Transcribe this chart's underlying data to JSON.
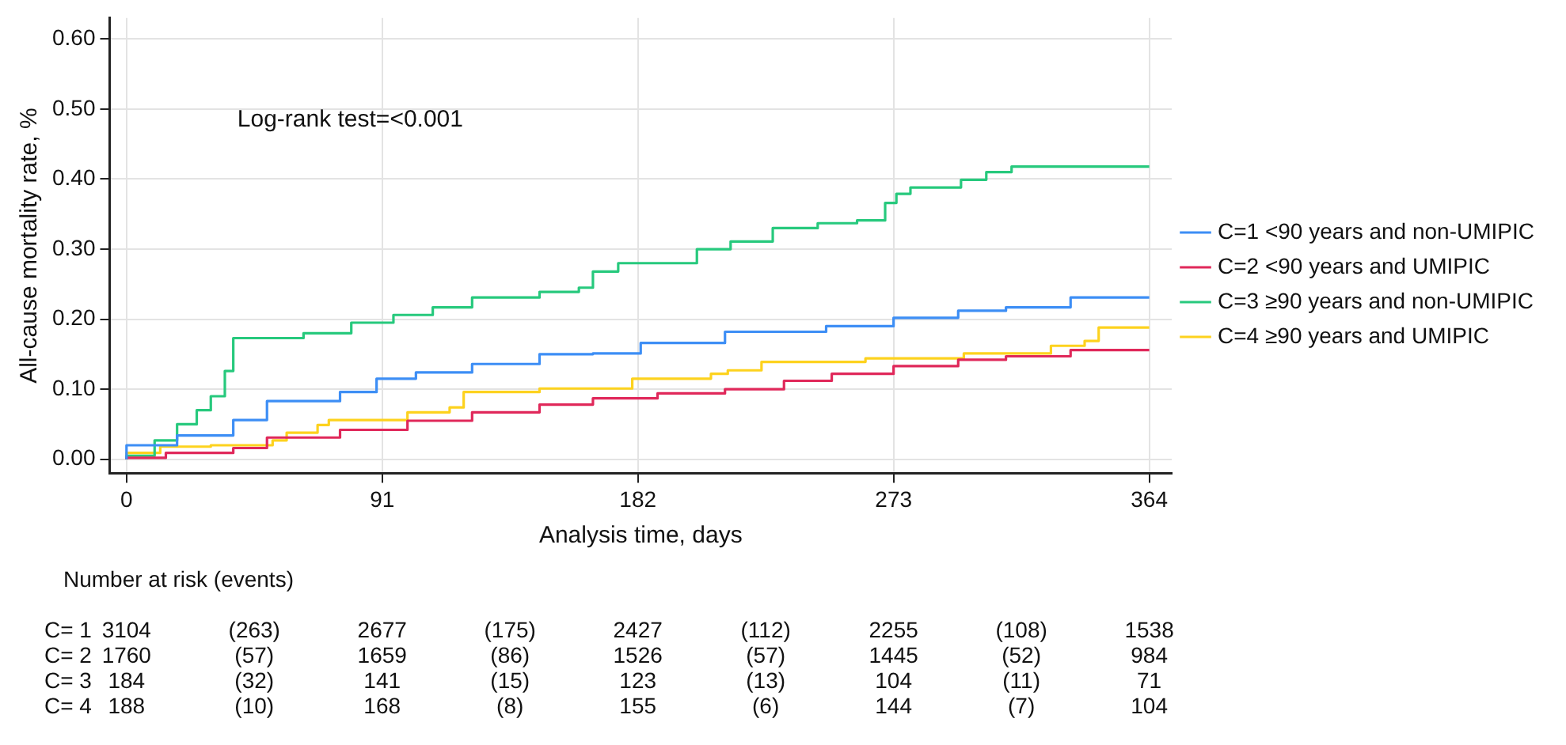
{
  "chart_data": {
    "type": "step",
    "xlabel": "Analysis time, days",
    "ylabel": "All-cause mortality rate, %",
    "xlim": [
      -6,
      372
    ],
    "xticks": [
      0,
      91,
      182,
      273,
      364
    ],
    "ylim": [
      -0.02,
      0.63
    ],
    "yticks": [
      {
        "value": 0,
        "label": "0.00"
      },
      {
        "value": 0.1,
        "label": "0.10"
      },
      {
        "value": 0.2,
        "label": "0.20"
      },
      {
        "value": 0.3,
        "label": "0.30"
      },
      {
        "value": 0.4,
        "label": "0.40"
      },
      {
        "value": 0.5,
        "label": "0.50"
      },
      {
        "value": 0.6,
        "label": "0.60"
      }
    ],
    "grid": true,
    "legend": "right",
    "line_style": "solid",
    "marker": "none",
    "series": [
      {
        "name": "C=1 <90 years and non-UMIPIC",
        "color": "#3d8ef5",
        "x": [
          0,
          18,
          38,
          50,
          76,
          89,
          103,
          123,
          147,
          166,
          183,
          213,
          249,
          273,
          296,
          313,
          336,
          364
        ],
        "values": [
          0,
          0.02,
          0.034,
          0.056,
          0.083,
          0.096,
          0.115,
          0.124,
          0.136,
          0.15,
          0.151,
          0.166,
          0.182,
          0.19,
          0.202,
          0.212,
          0.217,
          0.231
        ]
      },
      {
        "name": "C=2 <90 years and UMIPIC",
        "color": "#e0285a",
        "x": [
          0,
          14,
          38,
          50,
          76,
          100,
          123,
          147,
          166,
          189,
          213,
          234,
          251,
          273,
          296,
          313,
          336,
          364
        ],
        "values": [
          0,
          0.002,
          0.009,
          0.016,
          0.031,
          0.042,
          0.055,
          0.067,
          0.078,
          0.087,
          0.094,
          0.1,
          0.112,
          0.122,
          0.133,
          0.142,
          0.147,
          0.156
        ]
      },
      {
        "name": "C=3 ≥90 years and non-UMIPIC",
        "color": "#27c97d",
        "x": [
          0,
          10,
          18,
          25,
          30,
          35,
          38,
          63,
          68,
          80,
          95,
          109,
          123,
          147,
          161,
          166,
          175,
          183,
          203,
          215,
          230,
          246,
          260,
          270,
          274,
          279,
          297,
          306,
          315,
          336,
          364
        ],
        "values": [
          0,
          0.005,
          0.027,
          0.05,
          0.07,
          0.09,
          0.126,
          0.173,
          0.18,
          0.18,
          0.195,
          0.206,
          0.217,
          0.231,
          0.239,
          0.245,
          0.268,
          0.28,
          0.28,
          0.3,
          0.311,
          0.33,
          0.337,
          0.341,
          0.366,
          0.379,
          0.388,
          0.399,
          0.41,
          0.418,
          0.418
        ]
      },
      {
        "name": "C=4 ≥90 years and UMIPIC",
        "color": "#fdd21e",
        "x": [
          0,
          12,
          30,
          52,
          57,
          68,
          72,
          86,
          100,
          115,
          120,
          147,
          180,
          208,
          214,
          226,
          263,
          298,
          329,
          341,
          346,
          358,
          364
        ],
        "values": [
          0,
          0.009,
          0.018,
          0.02,
          0.027,
          0.038,
          0.049,
          0.056,
          0.056,
          0.067,
          0.074,
          0.096,
          0.101,
          0.115,
          0.122,
          0.127,
          0.139,
          0.144,
          0.151,
          0.162,
          0.169,
          0.188,
          0.188
        ]
      }
    ],
    "annotations": [
      "Log-rank test=<0.001",
      "Number at risk (events)",
      "C= 1",
      "3104",
      "(263)",
      "2677",
      "(175)",
      "2427",
      "(112)",
      "2255",
      "(108)",
      "1538",
      "C= 2",
      "1760",
      "(57)",
      "1659",
      "(86)",
      "1526",
      "(57)",
      "1445",
      "(52)",
      "984",
      "C= 3",
      "184",
      "(32)",
      "141",
      "(15)",
      "123",
      "(13)",
      "104",
      "(11)",
      "71",
      "C= 4",
      "188",
      "(10)",
      "168",
      "(8)",
      "155",
      "(6)",
      "144",
      "(7)",
      "104"
    ]
  }
}
